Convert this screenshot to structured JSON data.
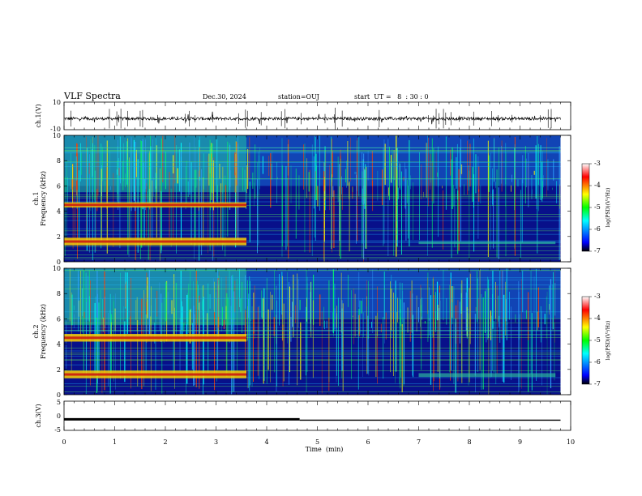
{
  "header": {
    "title": "VLF Spectra",
    "date": "Dec.30, 2024",
    "station": "station=OUJ",
    "start_ut": "start  UT =   8  : 30 : 0"
  },
  "colors": {
    "background": "#ffffff",
    "axis": "#000000",
    "spectrogram_low": "#08108a",
    "spectrogram_high": "#c81010",
    "colorbar_stops": [
      "#000000",
      "#0000ff",
      "#00ffff",
      "#00ff00",
      "#ffff00",
      "#ff0000",
      "#ffffff"
    ]
  },
  "chart_data": [
    {
      "type": "line",
      "name": "ch1-waveform",
      "ylabel": "ch.1(V)",
      "ylim": [
        -10,
        10
      ],
      "yticks": [
        "10",
        "-10"
      ],
      "description_series": "broadband waveform, amplitude near -2 V with impulsive spikes",
      "x_range_min": [
        0,
        9.8
      ],
      "baseline_v": -2
    },
    {
      "type": "heatmap",
      "name": "ch1-spectrogram",
      "ylabel": "Frequency (kHz)",
      "channel_label": "ch.1",
      "ylim": [
        0,
        10
      ],
      "yticks": [
        "0",
        "2",
        "4",
        "6",
        "8",
        "10"
      ],
      "x_range_min": [
        0,
        9.8
      ],
      "bands": [
        {
          "f_khz": [
            1.3,
            1.9
          ],
          "t_min": [
            0,
            3.6
          ]
        },
        {
          "f_khz": [
            4.3,
            4.7
          ],
          "t_min": [
            0,
            3.6
          ]
        },
        {
          "f_khz": [
            1.4,
            1.6
          ],
          "t_min": [
            7.0,
            9.7
          ]
        }
      ],
      "colorbar": {
        "label": "log(PSD)(V²/Hz)",
        "ticks": [
          "-3",
          "-4",
          "-5",
          "-6",
          "-7"
        ],
        "range": [
          -7,
          -3
        ]
      }
    },
    {
      "type": "heatmap",
      "name": "ch2-spectrogram",
      "ylabel": "Frequency (kHz)",
      "channel_label": "ch.2",
      "ylim": [
        0,
        10
      ],
      "yticks": [
        "0",
        "2",
        "4",
        "6",
        "8",
        "10"
      ],
      "x_range_min": [
        0,
        9.8
      ],
      "bands": [
        {
          "f_khz": [
            1.3,
            1.9
          ],
          "t_min": [
            0,
            3.6
          ]
        },
        {
          "f_khz": [
            4.2,
            4.8
          ],
          "t_min": [
            0,
            3.6
          ]
        },
        {
          "f_khz": [
            1.4,
            1.7
          ],
          "t_min": [
            7.0,
            9.7
          ]
        }
      ],
      "colorbar": {
        "label": "log(PSD)(V²/Hz)",
        "ticks": [
          "-3",
          "-4",
          "-5",
          "-6",
          "-7"
        ],
        "range": [
          -7,
          -3
        ]
      }
    },
    {
      "type": "line",
      "name": "ch3-signal",
      "ylabel": "ch.3(V)",
      "ylim": [
        -5,
        5
      ],
      "yticks": [
        "5",
        "0",
        "-5"
      ],
      "x_range_min": [
        0,
        9.8
      ],
      "series": [
        {
          "x": [
            0,
            4.65
          ],
          "y": [
            -1.2,
            -1.2
          ]
        },
        {
          "x": [
            4.65,
            9.8
          ],
          "y": [
            -1.5,
            -1.5
          ]
        }
      ]
    }
  ],
  "xaxis": {
    "xlabel": "Time  (min)",
    "xlim": [
      0,
      10
    ],
    "xticks": [
      "0",
      "1",
      "2",
      "3",
      "4",
      "5",
      "6",
      "7",
      "8",
      "9",
      "10"
    ]
  }
}
